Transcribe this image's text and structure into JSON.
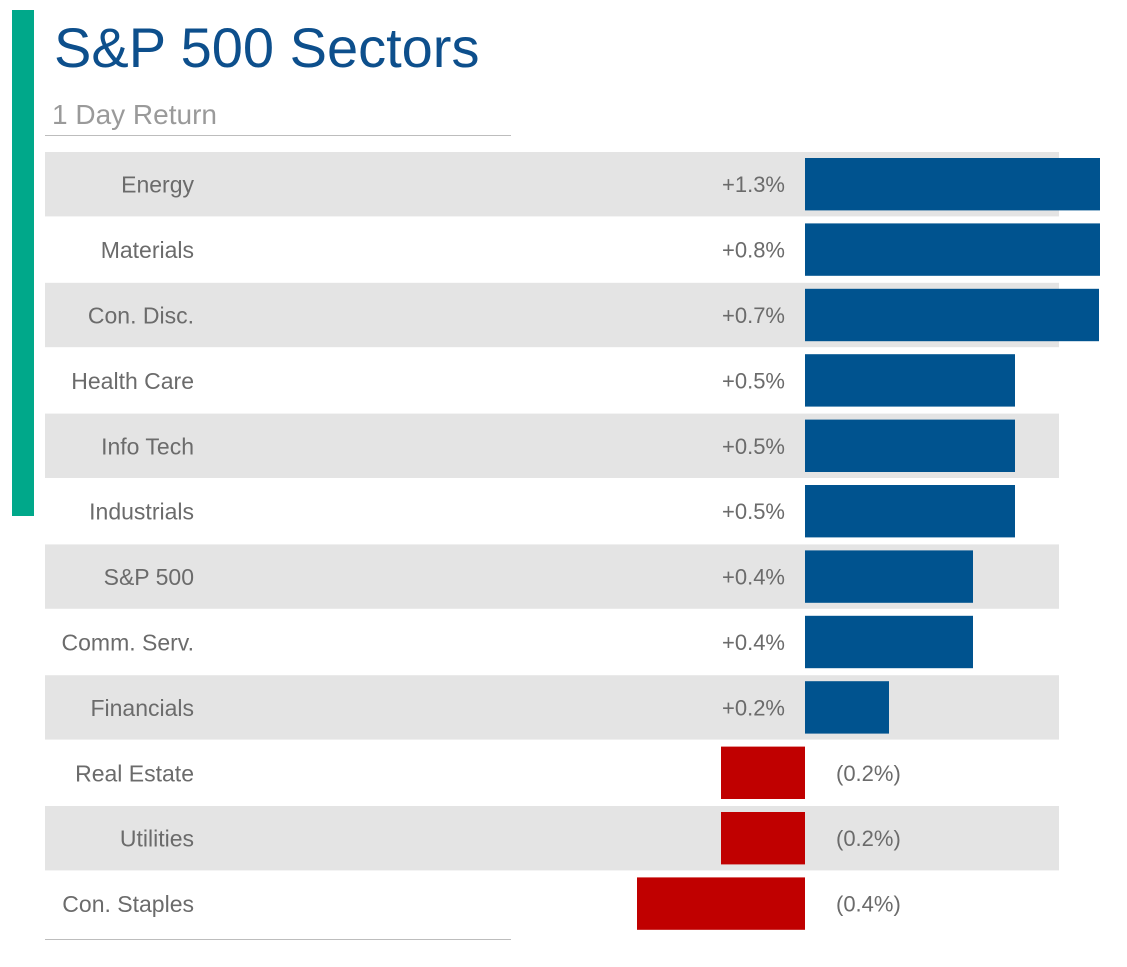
{
  "title": "S&P 500 Sectors",
  "subtitle": "1 Day Return",
  "colors": {
    "accent": "#00a88a",
    "title": "#0d4f8c",
    "positive": "#00538f",
    "negative": "#c00000",
    "band": "#e4e4e4",
    "label": "#6b6b6b"
  },
  "chart_data": {
    "type": "bar",
    "orientation": "horizontal",
    "title": "S&P 500 Sectors",
    "subtitle": "1 Day Return",
    "categories": [
      "Energy",
      "Materials",
      "Con. Disc.",
      "Health Care",
      "Info Tech",
      "Industrials",
      "S&P 500",
      "Comm. Serv.",
      "Financials",
      "Real Estate",
      "Utilities",
      "Con. Staples"
    ],
    "values": [
      1.3,
      0.8,
      0.7,
      0.5,
      0.5,
      0.5,
      0.4,
      0.4,
      0.2,
      -0.2,
      -0.2,
      -0.4
    ],
    "value_labels": [
      "+1.3%",
      "+0.8%",
      "+0.7%",
      "+0.5%",
      "+0.5%",
      "+0.5%",
      "+0.4%",
      "+0.4%",
      "+0.2%",
      "(0.2%)",
      "(0.2%)",
      "(0.4%)"
    ],
    "axis_max": 0.7,
    "xlabel": "",
    "ylabel": "",
    "grid": false,
    "legend": false
  }
}
